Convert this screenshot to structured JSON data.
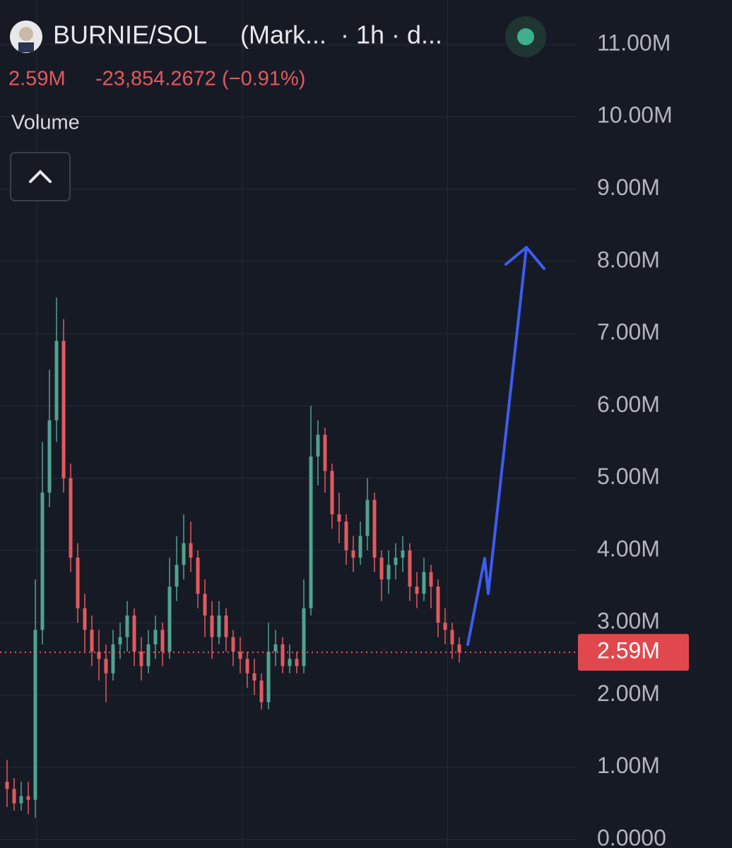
{
  "header": {
    "symbol": "BURNIE/SOL",
    "title_rest": "(Mark...  · 1h · d...",
    "last": "2.59M",
    "change": "-23,854.2672 (−0.91%)",
    "indicator": "Volume"
  },
  "chart_data": {
    "type": "candlestick",
    "up_color": "#4fa38f",
    "down_color": "#e15a5d",
    "open": [
      0.8,
      0.7,
      0.5,
      0.6,
      0.55,
      2.9,
      4.8,
      5.8,
      6.9,
      5.0,
      3.9,
      3.2,
      2.9,
      2.6,
      2.5,
      2.3,
      2.7,
      2.8,
      3.1,
      2.6,
      2.4,
      2.7,
      2.9,
      2.6,
      3.5,
      3.8,
      4.1,
      3.9,
      3.4,
      3.1,
      2.8,
      3.1,
      2.8,
      2.6,
      2.5,
      2.3,
      2.2,
      1.9,
      2.6,
      2.7,
      2.4,
      2.5,
      2.4,
      3.2,
      5.3,
      5.6,
      5.1,
      4.5,
      4.4,
      4.0,
      3.9,
      4.2,
      4.7,
      3.9,
      3.6,
      3.8,
      3.9,
      4.0,
      3.5,
      3.4,
      3.7,
      3.5,
      3.0,
      2.9,
      2.7
    ],
    "high": [
      1.1,
      0.85,
      0.8,
      0.8,
      3.6,
      5.5,
      6.5,
      7.5,
      7.2,
      5.2,
      4.1,
      3.4,
      3.1,
      2.9,
      2.7,
      2.9,
      3.0,
      3.3,
      3.2,
      2.8,
      2.9,
      3.1,
      3.0,
      3.9,
      4.2,
      4.5,
      4.4,
      4.0,
      3.6,
      3.3,
      3.3,
      3.2,
      2.9,
      2.8,
      2.6,
      2.5,
      2.3,
      3.0,
      2.9,
      2.8,
      2.7,
      2.6,
      3.6,
      6.0,
      5.8,
      5.7,
      5.2,
      4.8,
      4.5,
      4.2,
      4.4,
      5.0,
      4.8,
      4.0,
      4.0,
      4.1,
      4.2,
      4.1,
      3.7,
      3.9,
      3.8,
      3.6,
      3.2,
      3.0,
      2.8
    ],
    "low": [
      0.45,
      0.4,
      0.4,
      0.35,
      0.3,
      2.7,
      4.6,
      5.5,
      4.8,
      3.7,
      3.0,
      2.6,
      2.4,
      2.2,
      1.9,
      2.2,
      2.5,
      2.6,
      2.4,
      2.2,
      2.3,
      2.5,
      2.4,
      2.5,
      3.3,
      3.6,
      3.7,
      3.2,
      2.8,
      2.5,
      2.7,
      2.6,
      2.4,
      2.3,
      2.1,
      2.0,
      1.8,
      1.8,
      2.4,
      2.3,
      2.3,
      2.3,
      2.3,
      3.1,
      4.9,
      4.8,
      4.3,
      4.1,
      3.8,
      3.7,
      3.8,
      4.0,
      3.7,
      3.3,
      3.4,
      3.6,
      3.7,
      3.3,
      3.2,
      3.3,
      3.2,
      2.8,
      2.7,
      2.5,
      2.45
    ],
    "close": [
      0.7,
      0.5,
      0.6,
      0.55,
      2.9,
      4.8,
      5.8,
      6.9,
      5.0,
      3.9,
      3.2,
      2.9,
      2.6,
      2.5,
      2.3,
      2.7,
      2.8,
      3.1,
      2.6,
      2.4,
      2.7,
      2.9,
      2.6,
      3.5,
      3.8,
      4.1,
      3.9,
      3.4,
      3.1,
      2.8,
      3.1,
      2.8,
      2.6,
      2.5,
      2.3,
      2.2,
      1.9,
      2.6,
      2.7,
      2.4,
      2.5,
      2.4,
      3.2,
      5.3,
      5.6,
      5.1,
      4.5,
      4.4,
      4.0,
      3.9,
      4.2,
      4.7,
      3.9,
      3.6,
      3.8,
      3.9,
      4.0,
      3.5,
      3.4,
      3.7,
      3.5,
      3.0,
      2.9,
      2.7,
      2.59
    ],
    "ylim": [
      0,
      11.0
    ],
    "yticks": [
      {
        "value": 0,
        "label": "0.0000"
      },
      {
        "value": 1,
        "label": "1.00M"
      },
      {
        "value": 2,
        "label": "2.00M"
      },
      {
        "value": 3,
        "label": "3.00M"
      },
      {
        "value": 4,
        "label": "4.00M"
      },
      {
        "value": 5,
        "label": "5.00M"
      },
      {
        "value": 6,
        "label": "6.00M"
      },
      {
        "value": 7,
        "label": "7.00M"
      },
      {
        "value": 8,
        "label": "8.00M"
      },
      {
        "value": 9,
        "label": "9.00M"
      },
      {
        "value": 10,
        "label": "10.00M"
      },
      {
        "value": 11,
        "label": "11.00M"
      }
    ],
    "last_price": {
      "value": 2.59,
      "label": "2.59M"
    },
    "grid": true
  }
}
